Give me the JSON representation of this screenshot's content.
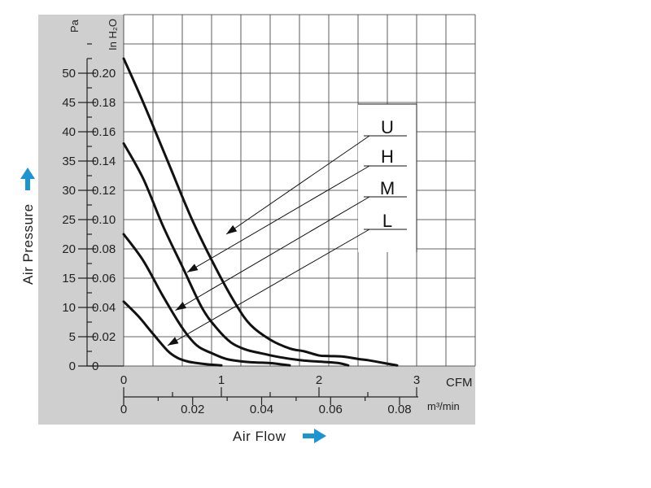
{
  "chart_data": {
    "type": "line",
    "xlabel": "Air Flow",
    "ylabel": "Air Pressure",
    "x_unit_primary": "CFM",
    "x_unit_secondary": "m³/min",
    "y_unit_primary": "Pa",
    "y_unit_secondary": "In H₂O",
    "xlim": [
      0,
      3.6
    ],
    "ylim": [
      0,
      60
    ],
    "x_ticks_cfm": [
      "0",
      "1",
      "2",
      "3"
    ],
    "x_ticks_m3min": [
      "0",
      "0.02",
      "0.04",
      "0.06",
      "0.08"
    ],
    "y_ticks_pa": [
      "0",
      "5",
      "10",
      "15",
      "20",
      "25",
      "30",
      "35",
      "40",
      "45",
      "50"
    ],
    "y_ticks_inh2o": [
      "0",
      "0.02",
      "0.04",
      "0.06",
      "0.08",
      "0.10",
      "0.12",
      "0.14",
      "0.16",
      "0.18",
      "0.20"
    ],
    "grid": true,
    "legend_position": "right",
    "series": [
      {
        "name": "U",
        "x": [
          0,
          0.2,
          0.45,
          0.7,
          0.95,
          1.15,
          1.3,
          1.5,
          1.7,
          1.85,
          2.0,
          2.1,
          2.25,
          2.4,
          2.5,
          2.6,
          2.8
        ],
        "y": [
          52.5,
          45,
          35,
          25,
          16.5,
          10.5,
          7,
          4.5,
          3,
          2.5,
          1.8,
          1.7,
          1.6,
          1.2,
          1.0,
          0.7,
          0.1
        ]
      },
      {
        "name": "H",
        "x": [
          0,
          0.2,
          0.4,
          0.6,
          0.8,
          0.95,
          1.1,
          1.25,
          1.4,
          1.6,
          1.8,
          1.95,
          2.05,
          2.2,
          2.3
        ],
        "y": [
          38,
          32,
          24,
          17,
          10,
          6.5,
          4,
          2.8,
          2.2,
          1.5,
          1.0,
          0.8,
          0.7,
          0.5,
          0.1
        ]
      },
      {
        "name": "M",
        "x": [
          0,
          0.2,
          0.4,
          0.6,
          0.75,
          0.9,
          1.05,
          1.2,
          1.35,
          1.5,
          1.7
        ],
        "y": [
          22.5,
          18,
          12,
          6.5,
          3.5,
          2.2,
          1.2,
          0.8,
          0.6,
          0.5,
          0.1
        ]
      },
      {
        "name": "L",
        "x": [
          0,
          0.15,
          0.3,
          0.45,
          0.55,
          0.65,
          0.75,
          0.85,
          1.0
        ],
        "y": [
          11,
          8.5,
          5.5,
          2.6,
          1.4,
          0.8,
          0.5,
          0.3,
          0.1
        ]
      }
    ],
    "legend": [
      "U",
      "H",
      "M",
      "L"
    ]
  },
  "colors": {
    "panel_gray": "#cfcfcf",
    "grid": "#333333",
    "curve": "#111111",
    "accent_arrow": "#1a95d1"
  },
  "icons": {
    "up_arrow": "up-arrow-icon",
    "right_arrow": "right-arrow-icon"
  }
}
